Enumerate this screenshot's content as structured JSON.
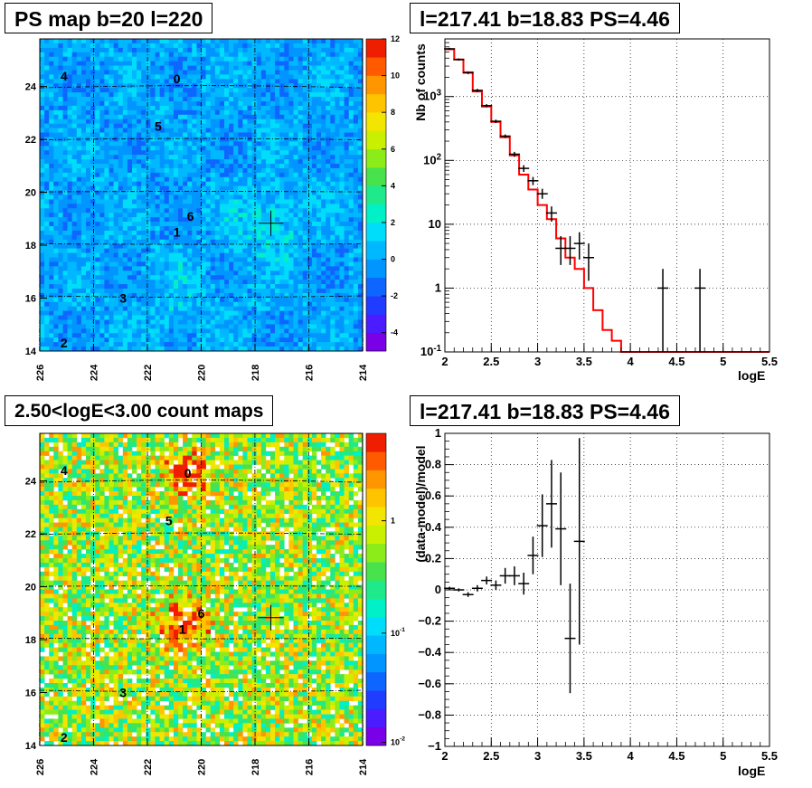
{
  "titles": {
    "ps_map": "PS map b=20 l=220",
    "spectrum": "l=217.41 b=18.83 PS=4.46",
    "count_map": "2.50<logE<3.00 count maps",
    "residual": "l=217.41 b=18.83 PS=4.46"
  },
  "colors": {
    "model_line": "#ff0000",
    "data_marker": "#000000",
    "grid": "#000000",
    "cross_marker": "#000000"
  },
  "chart_data": [
    {
      "type": "heatmap",
      "name": "ps-map",
      "title": "PS map b=20 l=220",
      "x_ticks": [
        "226",
        "224",
        "222",
        "220",
        "218",
        "216",
        "214"
      ],
      "y_ticks": [
        "14",
        "16",
        "18",
        "20",
        "22",
        "24"
      ],
      "x_range": [
        226,
        214
      ],
      "y_range": [
        14,
        25.8
      ],
      "colorbar_ticks": [
        "12",
        "10",
        "8",
        "6",
        "4",
        "2",
        "0",
        "-2",
        "-4"
      ],
      "colorbar_range": [
        -5,
        12
      ],
      "scale": "linear",
      "source_labels": [
        {
          "label": "0",
          "l": 220.9,
          "b": 24.3
        },
        {
          "label": "1",
          "l": 220.9,
          "b": 18.5
        },
        {
          "label": "2",
          "l": 225.1,
          "b": 14.3
        },
        {
          "label": "3",
          "l": 222.9,
          "b": 16.0
        },
        {
          "label": "4",
          "l": 225.1,
          "b": 24.4
        },
        {
          "label": "5",
          "l": 221.6,
          "b": 22.5
        },
        {
          "label": "6",
          "l": 220.4,
          "b": 19.1
        }
      ],
      "cross": {
        "l": 217.41,
        "b": 18.83
      },
      "grid": true
    },
    {
      "type": "line",
      "name": "spectrum",
      "title": "l=217.41 b=18.83 PS=4.46",
      "xlabel": "logE",
      "ylabel": "Nb of counts",
      "xlim": [
        2,
        5.5
      ],
      "ylim": [
        0.1,
        8000
      ],
      "yscale": "log",
      "x_ticks": [
        "2",
        "2.5",
        "3",
        "3.5",
        "4",
        "4.5",
        "5",
        "5.5"
      ],
      "y_ticks": [
        "10^{-1}",
        "1",
        "10",
        "10^{2}",
        "10^{3}"
      ],
      "model_step": {
        "edges": [
          2.0,
          2.1,
          2.2,
          2.3,
          2.4,
          2.5,
          2.6,
          2.7,
          2.8,
          2.9,
          3.0,
          3.1,
          3.2,
          3.3,
          3.4,
          3.5,
          3.6,
          3.7,
          3.8,
          3.9,
          4.0,
          5.5
        ],
        "values": [
          5500,
          3800,
          2400,
          1200,
          700,
          400,
          230,
          120,
          60,
          35,
          20,
          12,
          6,
          3,
          2,
          1,
          0.45,
          0.22,
          0.15,
          0.1,
          0.1
        ]
      },
      "points": [
        {
          "x": 2.05,
          "y": 5600,
          "lo": 5400,
          "hi": 5800
        },
        {
          "x": 2.15,
          "y": 3800,
          "lo": 3650,
          "hi": 3950
        },
        {
          "x": 2.25,
          "y": 2350,
          "lo": 2250,
          "hi": 2450
        },
        {
          "x": 2.35,
          "y": 1250,
          "lo": 1180,
          "hi": 1320
        },
        {
          "x": 2.45,
          "y": 720,
          "lo": 680,
          "hi": 760
        },
        {
          "x": 2.55,
          "y": 410,
          "lo": 385,
          "hi": 435
        },
        {
          "x": 2.65,
          "y": 240,
          "lo": 225,
          "hi": 255
        },
        {
          "x": 2.75,
          "y": 125,
          "lo": 114,
          "hi": 136
        },
        {
          "x": 2.85,
          "y": 75,
          "lo": 66,
          "hi": 84
        },
        {
          "x": 2.95,
          "y": 48,
          "lo": 41,
          "hi": 55
        },
        {
          "x": 3.05,
          "y": 30,
          "lo": 25,
          "hi": 36
        },
        {
          "x": 3.15,
          "y": 15,
          "lo": 11,
          "hi": 19
        },
        {
          "x": 3.25,
          "y": 4.2,
          "lo": 2.3,
          "hi": 6.5
        },
        {
          "x": 3.35,
          "y": 4.2,
          "lo": 2.3,
          "hi": 6.5
        },
        {
          "x": 3.45,
          "y": 5.0,
          "lo": 2.8,
          "hi": 7.5
        },
        {
          "x": 3.55,
          "y": 3.0,
          "lo": 1.3,
          "hi": 5.0
        },
        {
          "x": 4.35,
          "y": 1.0,
          "lo": 0.1,
          "hi": 2.0
        },
        {
          "x": 4.75,
          "y": 1.0,
          "lo": 0.1,
          "hi": 2.0
        }
      ],
      "grid": true
    },
    {
      "type": "heatmap",
      "name": "count-map",
      "title": "2.50<logE<3.00 count maps",
      "x_ticks": [
        "226",
        "224",
        "222",
        "220",
        "218",
        "216",
        "214"
      ],
      "y_ticks": [
        "14",
        "16",
        "18",
        "20",
        "22",
        "24"
      ],
      "x_range": [
        226,
        214
      ],
      "y_range": [
        14,
        25.8
      ],
      "colorbar_ticks": [
        "1",
        "10^{-1}",
        "10^{-2}"
      ],
      "scale": "log",
      "source_labels": [
        {
          "label": "0",
          "l": 220.5,
          "b": 24.3
        },
        {
          "label": "1",
          "l": 220.7,
          "b": 18.4
        },
        {
          "label": "2",
          "l": 225.1,
          "b": 14.3
        },
        {
          "label": "3",
          "l": 222.9,
          "b": 16.0
        },
        {
          "label": "4",
          "l": 225.1,
          "b": 24.4
        },
        {
          "label": "5",
          "l": 221.2,
          "b": 22.5
        },
        {
          "label": "6",
          "l": 220.0,
          "b": 19.0
        }
      ],
      "cross": {
        "l": 217.41,
        "b": 18.83
      },
      "grid": true
    },
    {
      "type": "scatter",
      "name": "residual",
      "title": "l=217.41 b=18.83 PS=4.46",
      "xlabel": "logE",
      "ylabel": "(data-model)/model",
      "xlim": [
        2,
        5.5
      ],
      "ylim": [
        -1,
        1
      ],
      "x_ticks": [
        "2",
        "2.5",
        "3",
        "3.5",
        "4",
        "4.5",
        "5",
        "5.5"
      ],
      "y_ticks": [
        "-1",
        "-0.8",
        "-0.6",
        "-0.4",
        "-0.2",
        "0",
        "0.2",
        "0.4",
        "0.6",
        "0.8",
        "1"
      ],
      "points": [
        {
          "x": 2.05,
          "y": 0.01,
          "err": 0.01
        },
        {
          "x": 2.15,
          "y": 0.0,
          "err": 0.01
        },
        {
          "x": 2.25,
          "y": -0.03,
          "err": 0.015
        },
        {
          "x": 2.35,
          "y": 0.01,
          "err": 0.02
        },
        {
          "x": 2.45,
          "y": 0.06,
          "err": 0.025
        },
        {
          "x": 2.55,
          "y": 0.03,
          "err": 0.03
        },
        {
          "x": 2.65,
          "y": 0.09,
          "err": 0.05
        },
        {
          "x": 2.75,
          "y": 0.09,
          "err": 0.06
        },
        {
          "x": 2.85,
          "y": 0.04,
          "err": 0.07
        },
        {
          "x": 2.95,
          "y": 0.22,
          "err": 0.12
        },
        {
          "x": 3.05,
          "y": 0.41,
          "err": 0.2
        },
        {
          "x": 3.15,
          "y": 0.55,
          "err": 0.28
        },
        {
          "x": 3.25,
          "y": 0.39,
          "err": 0.36
        },
        {
          "x": 3.35,
          "y": -0.31,
          "err": 0.35
        },
        {
          "x": 3.45,
          "y": 0.31,
          "err": 0.66
        }
      ],
      "grid": true
    }
  ]
}
